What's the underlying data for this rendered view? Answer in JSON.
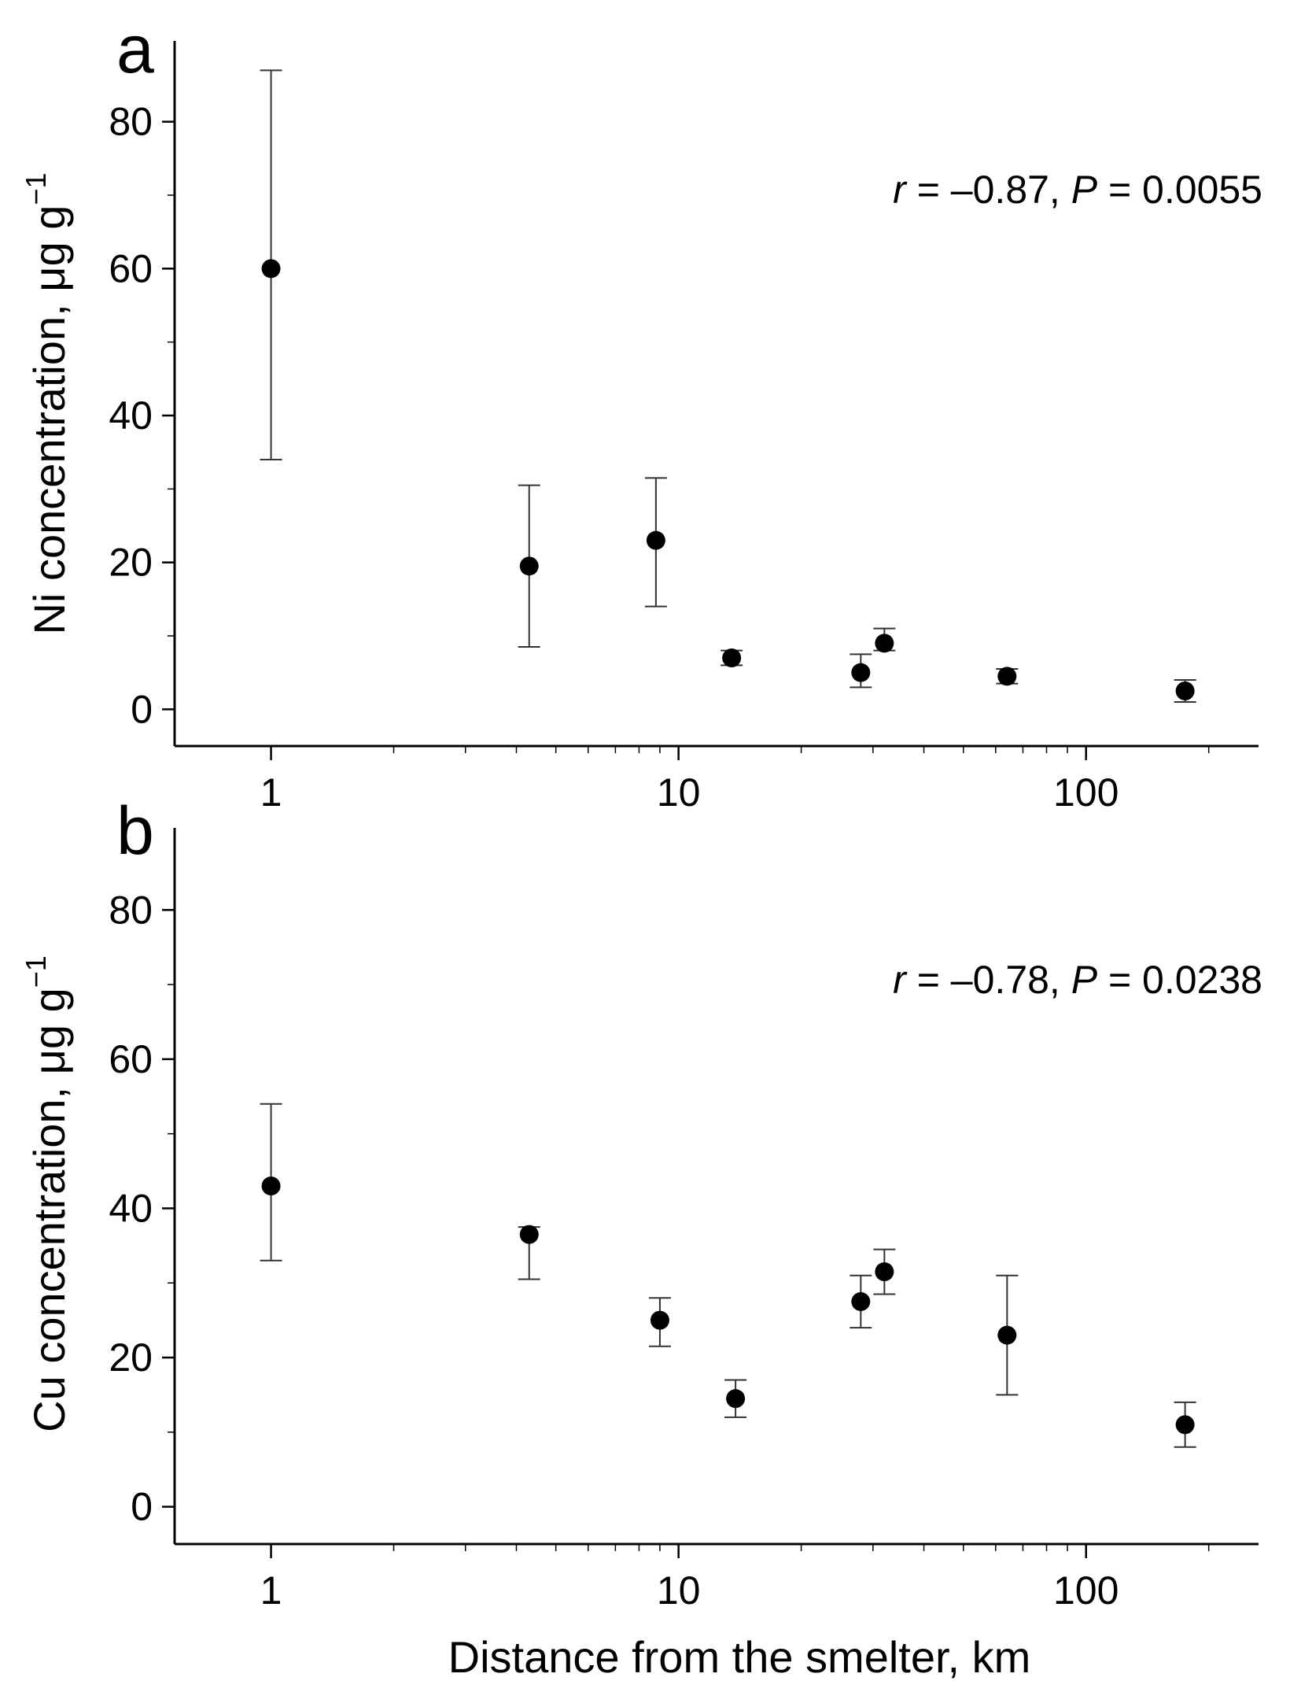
{
  "chart_data": [
    {
      "panel": "a",
      "type": "scatter",
      "x_scale": "log",
      "xlabel": "",
      "ylabel": "Ni concentration, μg g",
      "ylabel_sup": "−1",
      "xlim": [
        0.58,
        265
      ],
      "ylim": [
        -5,
        91
      ],
      "x_ticks": [
        1,
        10,
        100
      ],
      "x_tick_labels": [
        "1",
        "10",
        "100"
      ],
      "y_ticks": [
        0,
        20,
        40,
        60,
        80
      ],
      "y_tick_labels": [
        "0",
        "20",
        "40",
        "60",
        "80"
      ],
      "annotation": {
        "r_label": "r",
        "r_text": " = –0.87, ",
        "p_label": "P",
        "p_text": " = 0.0055"
      },
      "points": [
        {
          "x": 1,
          "y": 60,
          "lo": 34,
          "hi": 87
        },
        {
          "x": 4.3,
          "y": 19.5,
          "lo": 8.5,
          "hi": 30.5
        },
        {
          "x": 8.8,
          "y": 23,
          "lo": 14,
          "hi": 31.5
        },
        {
          "x": 13.5,
          "y": 7,
          "lo": 6,
          "hi": 8
        },
        {
          "x": 28,
          "y": 5,
          "lo": 3,
          "hi": 7.5
        },
        {
          "x": 32,
          "y": 9,
          "lo": 8,
          "hi": 11
        },
        {
          "x": 64,
          "y": 4.5,
          "lo": 3.5,
          "hi": 5.5
        },
        {
          "x": 175,
          "y": 2.5,
          "lo": 1,
          "hi": 4
        }
      ]
    },
    {
      "panel": "b",
      "type": "scatter",
      "x_scale": "log",
      "xlabel": "Distance from the smelter, km",
      "ylabel": "Cu concentration, μg g",
      "ylabel_sup": "−1",
      "xlim": [
        0.58,
        265
      ],
      "ylim": [
        -5,
        91
      ],
      "x_ticks": [
        1,
        10,
        100
      ],
      "x_tick_labels": [
        "1",
        "10",
        "100"
      ],
      "y_ticks": [
        0,
        20,
        40,
        60,
        80
      ],
      "y_tick_labels": [
        "0",
        "20",
        "40",
        "60",
        "80"
      ],
      "annotation": {
        "r_label": "r",
        "r_text": " = –0.78, ",
        "p_label": "P",
        "p_text": " = 0.0238"
      },
      "points": [
        {
          "x": 1,
          "y": 43,
          "lo": 33,
          "hi": 54
        },
        {
          "x": 4.3,
          "y": 36.5,
          "lo": 30.5,
          "hi": 37.5
        },
        {
          "x": 9.0,
          "y": 25,
          "lo": 21.5,
          "hi": 28
        },
        {
          "x": 13.8,
          "y": 14.5,
          "lo": 12,
          "hi": 17
        },
        {
          "x": 28,
          "y": 27.5,
          "lo": 24,
          "hi": 31
        },
        {
          "x": 32,
          "y": 31.5,
          "lo": 28.5,
          "hi": 34.5
        },
        {
          "x": 64,
          "y": 23,
          "lo": 15,
          "hi": 31
        },
        {
          "x": 175,
          "y": 11,
          "lo": 8,
          "hi": 14
        }
      ]
    }
  ]
}
